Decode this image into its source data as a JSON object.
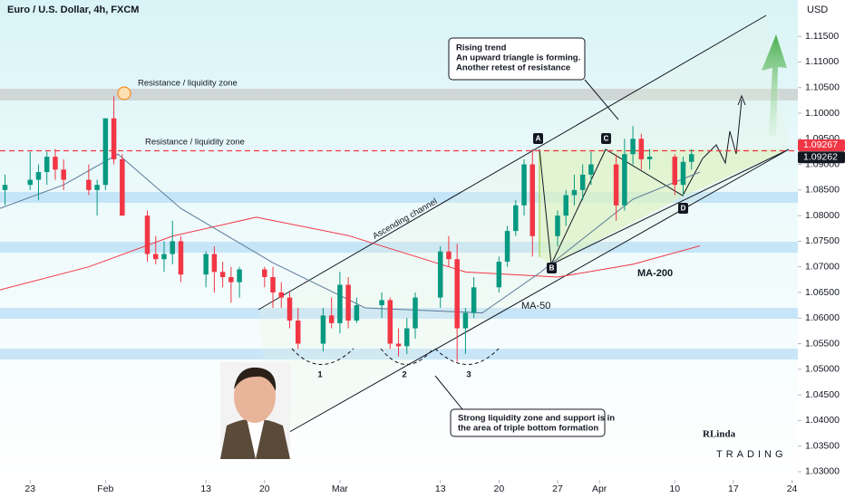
{
  "chart_data": {
    "type": "candlestick",
    "title": "Euro / U.S. Dollar, 4h, FXCM",
    "currency_label": "USD",
    "xlim": [
      19.4,
      114.7
    ],
    "ylim": [
      1.0284,
      1.1221
    ],
    "xticks": [
      {
        "value": 23,
        "label": "23"
      },
      {
        "value": 32,
        "label": "Feb"
      },
      {
        "value": 44,
        "label": "13"
      },
      {
        "value": 51,
        "label": "20"
      },
      {
        "value": 60,
        "label": "Mar"
      },
      {
        "value": 72,
        "label": "13"
      },
      {
        "value": 79,
        "label": "20"
      },
      {
        "value": 86,
        "label": "27"
      },
      {
        "value": 91,
        "label": "Apr"
      },
      {
        "value": 100,
        "label": "10"
      },
      {
        "value": 107,
        "label": "17"
      },
      {
        "value": 114,
        "label": "24"
      }
    ],
    "yticks": [
      {
        "value": 1.03,
        "label": "1.03000"
      },
      {
        "value": 1.035,
        "label": "1.03500"
      },
      {
        "value": 1.04,
        "label": "1.04000"
      },
      {
        "value": 1.045,
        "label": "1.04500"
      },
      {
        "value": 1.05,
        "label": "1.05000"
      },
      {
        "value": 1.055,
        "label": "1.05500"
      },
      {
        "value": 1.06,
        "label": "1.06000"
      },
      {
        "value": 1.065,
        "label": "1.06500"
      },
      {
        "value": 1.07,
        "label": "1.07000"
      },
      {
        "value": 1.075,
        "label": "1.07500"
      },
      {
        "value": 1.08,
        "label": "1.08000"
      },
      {
        "value": 1.085,
        "label": "1.08500"
      },
      {
        "value": 1.09,
        "label": "1.09000"
      },
      {
        "value": 1.095,
        "label": "1.09500"
      },
      {
        "value": 1.1,
        "label": "1.10000"
      },
      {
        "value": 1.105,
        "label": "1.10500"
      },
      {
        "value": 1.11,
        "label": "1.11000"
      },
      {
        "value": 1.115,
        "label": "1.11500"
      }
    ],
    "up_color": "#089981",
    "down_color": "#f23645",
    "candles": {
      "x": [
        20,
        23,
        24,
        25,
        26,
        27,
        30,
        31,
        32,
        33,
        34,
        37,
        38,
        39,
        40,
        41,
        44,
        45,
        46,
        47,
        48,
        51,
        52,
        53,
        54,
        55,
        58,
        59,
        60,
        61,
        62,
        65,
        66,
        67,
        68,
        69,
        72,
        73,
        74,
        75,
        76,
        79,
        80,
        81,
        82,
        83,
        86,
        87,
        88,
        89,
        90,
        93,
        94,
        95,
        96,
        97,
        100,
        101,
        102
      ],
      "open": [
        1.085,
        1.086,
        1.087,
        1.0885,
        1.0915,
        1.089,
        1.087,
        1.085,
        1.086,
        1.099,
        1.091,
        1.08,
        1.0725,
        1.0715,
        1.0725,
        1.075,
        1.0685,
        1.0725,
        1.069,
        1.068,
        1.067,
        1.0695,
        1.068,
        1.065,
        1.064,
        1.0595,
        1.055,
        1.0605,
        1.059,
        1.0665,
        1.0595,
        1.0625,
        1.0635,
        1.055,
        1.0545,
        1.058,
        1.064,
        1.073,
        1.0715,
        1.058,
        1.061,
        1.066,
        1.071,
        1.077,
        1.082,
        1.09,
        1.076,
        1.08,
        1.084,
        1.085,
        1.088,
        1.09,
        1.082,
        1.092,
        1.095,
        1.091,
        1.0915,
        1.086,
        1.0905
      ],
      "high": [
        1.088,
        1.0925,
        1.09,
        1.0925,
        1.093,
        1.091,
        1.09,
        1.087,
        1.099,
        1.1033,
        1.092,
        1.081,
        1.076,
        1.075,
        1.079,
        1.076,
        1.073,
        1.074,
        1.071,
        1.07,
        1.07,
        1.07,
        1.07,
        1.067,
        1.065,
        1.062,
        1.062,
        1.064,
        1.069,
        1.068,
        1.064,
        1.065,
        1.064,
        1.058,
        1.06,
        1.065,
        1.074,
        1.076,
        1.0745,
        1.062,
        1.068,
        1.072,
        1.078,
        1.083,
        1.091,
        1.093,
        1.081,
        1.085,
        1.088,
        1.09,
        1.0925,
        1.092,
        1.095,
        1.0975,
        1.096,
        1.093,
        1.092,
        1.0915,
        1.093
      ],
      "low": [
        1.082,
        1.085,
        1.083,
        1.086,
        1.087,
        1.085,
        1.084,
        1.08,
        1.085,
        1.09,
        1.08,
        1.071,
        1.0705,
        1.069,
        1.0705,
        1.067,
        1.066,
        1.065,
        1.066,
        1.063,
        1.064,
        1.066,
        1.062,
        1.062,
        1.058,
        1.054,
        1.0535,
        1.058,
        1.057,
        1.058,
        1.059,
        1.06,
        1.054,
        1.0525,
        1.053,
        1.056,
        1.062,
        1.07,
        1.0515,
        1.053,
        1.06,
        1.065,
        1.07,
        1.076,
        1.08,
        1.072,
        1.074,
        1.078,
        1.082,
        1.083,
        1.086,
        1.079,
        1.081,
        1.09,
        1.089,
        1.089,
        1.084,
        1.084,
        1.089
      ],
      "close": [
        1.086,
        1.087,
        1.0885,
        1.0915,
        1.089,
        1.087,
        1.085,
        1.086,
        1.099,
        1.091,
        1.08,
        1.0725,
        1.0715,
        1.0725,
        1.075,
        1.0685,
        1.0725,
        1.069,
        1.068,
        1.067,
        1.0695,
        1.068,
        1.065,
        1.064,
        1.0595,
        1.055,
        1.0605,
        1.059,
        1.0665,
        1.0595,
        1.0625,
        1.0635,
        1.055,
        1.0545,
        1.058,
        1.064,
        1.073,
        1.0715,
        1.058,
        1.061,
        1.066,
        1.071,
        1.077,
        1.082,
        1.09,
        1.076,
        1.08,
        1.084,
        1.085,
        1.088,
        1.09,
        1.082,
        1.092,
        1.095,
        1.091,
        1.0915,
        1.086,
        1.0905,
        1.092
      ]
    },
    "series": [
      {
        "name": "MA-200",
        "color": "#f23645",
        "x": [
          19.4,
          30,
          40,
          50,
          61,
          75,
          86,
          95,
          103
        ],
        "values": [
          1.0655,
          1.07,
          1.076,
          1.0797,
          1.0761,
          1.069,
          1.068,
          1.0705,
          1.0741
        ]
      },
      {
        "name": "MA-50",
        "color": "#5b7a99",
        "x": [
          19.4,
          27,
          33.5,
          41,
          52,
          63,
          77,
          84,
          95,
          103
        ],
        "values": [
          1.0814,
          1.086,
          1.092,
          1.0814,
          1.0708,
          1.062,
          1.061,
          1.069,
          1.0832,
          1.0885
        ]
      }
    ],
    "price_labels": [
      {
        "value": 1.09267,
        "label": "1.09267",
        "color": "#f23645"
      },
      {
        "value": 1.09262,
        "label": "1.09262",
        "color": "#131722"
      }
    ],
    "annotations": [
      "Resistance / liquidity zone",
      "Resistance / liquidity zone",
      "Ascending channel",
      "Rising trend",
      "An upward triangle is forming.",
      "Another retest of resistance",
      "Strong liquidity zone and support is in",
      "the area of triple bottom formation",
      "1",
      "2",
      "3",
      "A",
      "B",
      "C",
      "D"
    ],
    "logo": [
      "RLinda",
      "TRADING"
    ]
  }
}
